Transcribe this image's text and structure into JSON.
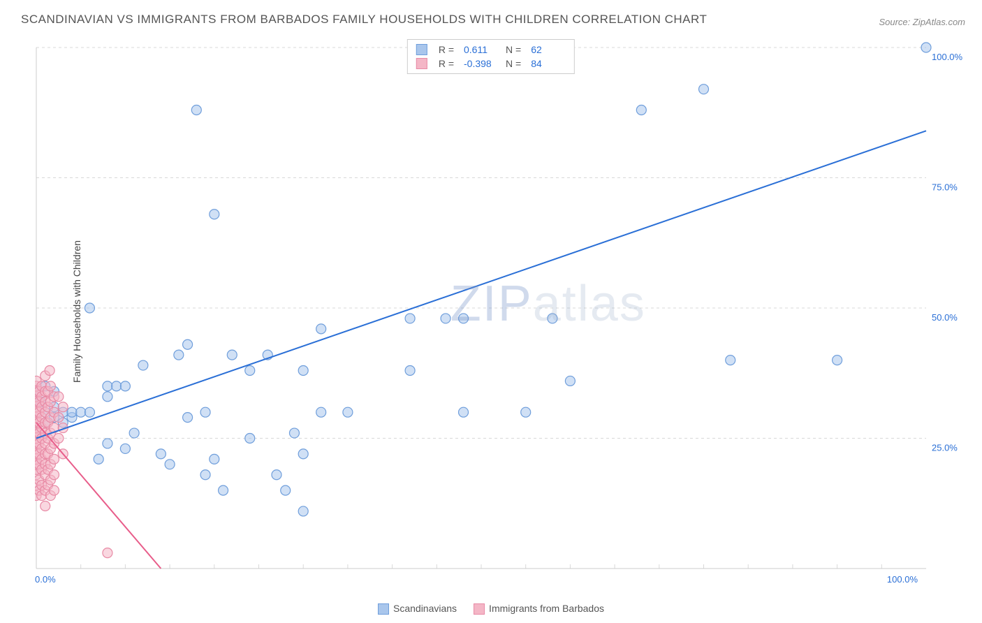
{
  "title": "SCANDINAVIAN VS IMMIGRANTS FROM BARBADOS FAMILY HOUSEHOLDS WITH CHILDREN CORRELATION CHART",
  "source": "Source: ZipAtlas.com",
  "y_axis_label": "Family Households with Children",
  "watermark": "ZIPatlas",
  "chart": {
    "type": "scatter",
    "xlim": [
      0,
      100
    ],
    "ylim": [
      0,
      100
    ],
    "x_ticks": [
      0,
      100
    ],
    "x_tick_labels": [
      "0.0%",
      "100.0%"
    ],
    "y_ticks": [
      25,
      50,
      75,
      100
    ],
    "y_tick_labels": [
      "25.0%",
      "50.0%",
      "75.0%",
      "100.0%"
    ],
    "grid_y": [
      25,
      50,
      75,
      100
    ],
    "grid_x_minor": [
      5,
      10,
      15,
      20,
      25,
      30,
      35,
      40,
      45,
      50,
      55,
      60,
      65,
      70,
      75,
      80,
      85,
      90,
      95
    ],
    "background_color": "#ffffff",
    "grid_color": "#d8d8d8",
    "border_color": "#cccccc",
    "marker_radius": 7,
    "marker_stroke_width": 1.2,
    "line_width": 2,
    "series": [
      {
        "name": "Scandinavians",
        "color_fill": "#a9c6ec",
        "color_stroke": "#6f9edb",
        "line_color": "#2a6fd6",
        "r": 0.611,
        "n": 62,
        "regression": {
          "x1": 0,
          "y1": 25,
          "x2": 100,
          "y2": 84
        },
        "points": [
          [
            0,
            34
          ],
          [
            0,
            33
          ],
          [
            1,
            30
          ],
          [
            1,
            28
          ],
          [
            0.5,
            32
          ],
          [
            1,
            35
          ],
          [
            2,
            31
          ],
          [
            2,
            29
          ],
          [
            2,
            34
          ],
          [
            3,
            30
          ],
          [
            3,
            28
          ],
          [
            4,
            29
          ],
          [
            4,
            30
          ],
          [
            5,
            30
          ],
          [
            6,
            30
          ],
          [
            6,
            50
          ],
          [
            7,
            21
          ],
          [
            8,
            24
          ],
          [
            8,
            33
          ],
          [
            8,
            35
          ],
          [
            9,
            35
          ],
          [
            10,
            23
          ],
          [
            10,
            35
          ],
          [
            11,
            26
          ],
          [
            12,
            39
          ],
          [
            14,
            22
          ],
          [
            15,
            20
          ],
          [
            16,
            41
          ],
          [
            17,
            29
          ],
          [
            17,
            43
          ],
          [
            18,
            88
          ],
          [
            19,
            18
          ],
          [
            19,
            30
          ],
          [
            20,
            21
          ],
          [
            20,
            68
          ],
          [
            21,
            15
          ],
          [
            22,
            41
          ],
          [
            24,
            25
          ],
          [
            24,
            38
          ],
          [
            26,
            41
          ],
          [
            27,
            18
          ],
          [
            28,
            15
          ],
          [
            29,
            26
          ],
          [
            30,
            38
          ],
          [
            30,
            22
          ],
          [
            30,
            11
          ],
          [
            32,
            30
          ],
          [
            32,
            46
          ],
          [
            35,
            30
          ],
          [
            42,
            48
          ],
          [
            42,
            38
          ],
          [
            46,
            48
          ],
          [
            48,
            48
          ],
          [
            48,
            30
          ],
          [
            55,
            30
          ],
          [
            58,
            48
          ],
          [
            60,
            36
          ],
          [
            68,
            88
          ],
          [
            75,
            92
          ],
          [
            78,
            40
          ],
          [
            90,
            40
          ],
          [
            100,
            100
          ]
        ]
      },
      {
        "name": "Immigrants from Barbados",
        "color_fill": "#f4b6c6",
        "color_stroke": "#e88aa5",
        "line_color": "#e85d8a",
        "r": -0.398,
        "n": 84,
        "regression": {
          "x1": 0,
          "y1": 28,
          "x2": 14,
          "y2": 0
        },
        "points": [
          [
            0,
            14
          ],
          [
            0,
            16
          ],
          [
            0,
            18
          ],
          [
            0,
            19
          ],
          [
            0,
            20
          ],
          [
            0,
            21
          ],
          [
            0,
            22
          ],
          [
            0,
            23
          ],
          [
            0,
            24
          ],
          [
            0,
            25
          ],
          [
            0,
            26
          ],
          [
            0,
            27
          ],
          [
            0,
            28
          ],
          [
            0,
            29
          ],
          [
            0,
            30
          ],
          [
            0,
            31
          ],
          [
            0,
            32
          ],
          [
            0,
            33
          ],
          [
            0,
            34
          ],
          [
            0,
            35
          ],
          [
            0,
            36
          ],
          [
            0.3,
            15
          ],
          [
            0.3,
            17
          ],
          [
            0.3,
            20
          ],
          [
            0.3,
            22
          ],
          [
            0.3,
            24
          ],
          [
            0.3,
            26
          ],
          [
            0.3,
            28
          ],
          [
            0.3,
            30
          ],
          [
            0.3,
            32
          ],
          [
            0.3,
            34
          ],
          [
            0.6,
            14
          ],
          [
            0.6,
            16
          ],
          [
            0.6,
            19
          ],
          [
            0.6,
            21
          ],
          [
            0.6,
            23
          ],
          [
            0.6,
            25
          ],
          [
            0.6,
            27
          ],
          [
            0.6,
            29
          ],
          [
            0.6,
            31
          ],
          [
            0.6,
            33
          ],
          [
            0.6,
            35
          ],
          [
            1,
            12
          ],
          [
            1,
            15
          ],
          [
            1,
            18
          ],
          [
            1,
            20
          ],
          [
            1,
            22
          ],
          [
            1,
            24
          ],
          [
            1,
            26
          ],
          [
            1,
            28
          ],
          [
            1,
            30
          ],
          [
            1,
            32
          ],
          [
            1,
            34
          ],
          [
            1.3,
            16
          ],
          [
            1.3,
            19
          ],
          [
            1.3,
            22
          ],
          [
            1.3,
            25
          ],
          [
            1.3,
            28
          ],
          [
            1.3,
            31
          ],
          [
            1.3,
            34
          ],
          [
            1.6,
            14
          ],
          [
            1.6,
            17
          ],
          [
            1.6,
            20
          ],
          [
            1.6,
            23
          ],
          [
            1.6,
            26
          ],
          [
            1.6,
            29
          ],
          [
            1.6,
            32
          ],
          [
            1.6,
            35
          ],
          [
            2,
            15
          ],
          [
            2,
            18
          ],
          [
            2,
            21
          ],
          [
            2,
            24
          ],
          [
            2,
            27
          ],
          [
            2,
            30
          ],
          [
            2,
            33
          ],
          [
            2.5,
            25
          ],
          [
            2.5,
            29
          ],
          [
            2.5,
            33
          ],
          [
            3,
            22
          ],
          [
            3,
            27
          ],
          [
            3,
            31
          ],
          [
            1,
            37
          ],
          [
            1.5,
            38
          ],
          [
            8,
            3
          ]
        ]
      }
    ]
  },
  "legend_bottom": {
    "items": [
      {
        "label": "Scandinavians",
        "fill": "#a9c6ec",
        "stroke": "#6f9edb"
      },
      {
        "label": "Immigrants from Barbados",
        "fill": "#f4b6c6",
        "stroke": "#e88aa5"
      }
    ]
  },
  "legend_top": {
    "rows": [
      {
        "swatch_fill": "#a9c6ec",
        "swatch_stroke": "#6f9edb",
        "r_label": "R =",
        "r_val": "0.611",
        "n_label": "N =",
        "n_val": "62"
      },
      {
        "swatch_fill": "#f4b6c6",
        "swatch_stroke": "#e88aa5",
        "r_label": "R =",
        "r_val": "-0.398",
        "n_label": "N =",
        "n_val": "84"
      }
    ]
  }
}
